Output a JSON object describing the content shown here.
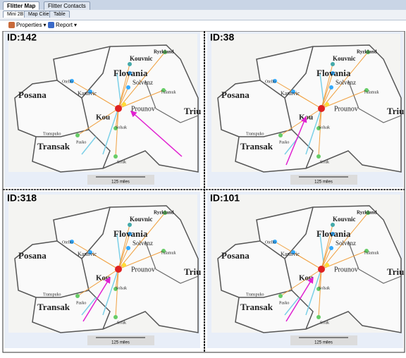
{
  "tabs": [
    "Flitter Map",
    "Flitter Contacts"
  ],
  "subtabs": [
    "Mini 2B",
    "Map Cities",
    "Table"
  ],
  "toolbar": [
    "Properties",
    "Report"
  ],
  "map": {
    "labels": [
      "Ryzkland",
      "Kouvnic",
      "Flovania",
      "Otello",
      "Solvenz",
      "Tulamuk",
      "Kannvic",
      "Posana",
      "Prounov",
      "Triu",
      "Kou",
      "Solsak",
      "Transpuko",
      "Transak",
      "Pasko",
      "Srrak"
    ],
    "scale": "125 miles"
  },
  "panels": [
    {
      "id": "ID:142"
    },
    {
      "id": "ID:38"
    },
    {
      "id": "ID:318"
    },
    {
      "id": "ID:101"
    }
  ]
}
